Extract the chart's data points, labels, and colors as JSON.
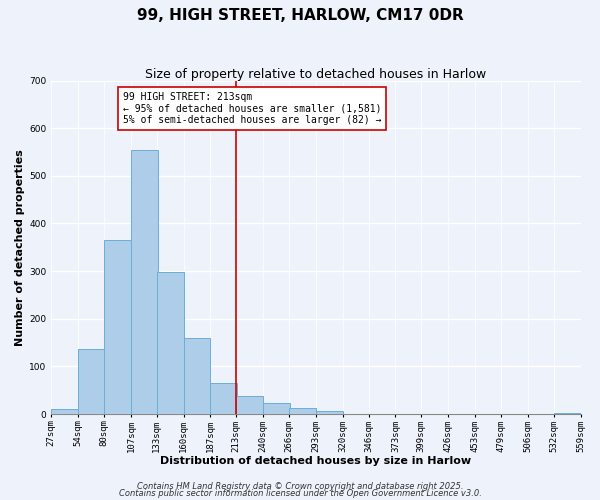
{
  "title": "99, HIGH STREET, HARLOW, CM17 0DR",
  "subtitle": "Size of property relative to detached houses in Harlow",
  "xlabel": "Distribution of detached houses by size in Harlow",
  "ylabel": "Number of detached properties",
  "bar_left_edges": [
    27,
    54,
    80,
    107,
    133,
    160,
    187,
    213,
    240,
    266,
    293,
    320,
    346,
    373,
    399,
    426,
    453,
    479,
    506,
    532
  ],
  "bar_heights": [
    10,
    137,
    365,
    555,
    298,
    160,
    65,
    38,
    23,
    13,
    7,
    0,
    0,
    0,
    0,
    0,
    0,
    0,
    0,
    2
  ],
  "bin_width": 27,
  "bar_color": "#aecde8",
  "bar_edge_color": "#6aaed6",
  "vline_x": 213,
  "vline_color": "#cc0000",
  "annotation_title": "99 HIGH STREET: 213sqm",
  "annotation_line1": "← 95% of detached houses are smaller (1,581)",
  "annotation_line2": "5% of semi-detached houses are larger (82) →",
  "xlim_left": 27,
  "xlim_right": 559,
  "ylim_top": 700,
  "ylim_bottom": 0,
  "yticks": [
    0,
    100,
    200,
    300,
    400,
    500,
    600,
    700
  ],
  "xtick_labels": [
    "27sqm",
    "54sqm",
    "80sqm",
    "107sqm",
    "133sqm",
    "160sqm",
    "187sqm",
    "213sqm",
    "240sqm",
    "266sqm",
    "293sqm",
    "320sqm",
    "346sqm",
    "373sqm",
    "399sqm",
    "426sqm",
    "453sqm",
    "479sqm",
    "506sqm",
    "532sqm",
    "559sqm"
  ],
  "xtick_positions": [
    27,
    54,
    80,
    107,
    133,
    160,
    187,
    213,
    240,
    266,
    293,
    320,
    346,
    373,
    399,
    426,
    453,
    479,
    506,
    532,
    559
  ],
  "footer_line1": "Contains HM Land Registry data © Crown copyright and database right 2025.",
  "footer_line2": "Contains public sector information licensed under the Open Government Licence v3.0.",
  "background_color": "#eef2fa",
  "grid_color": "#ffffff",
  "title_fontsize": 11,
  "subtitle_fontsize": 9,
  "axis_label_fontsize": 8,
  "tick_fontsize": 6.5,
  "footer_fontsize": 6,
  "annotation_fontsize": 7
}
